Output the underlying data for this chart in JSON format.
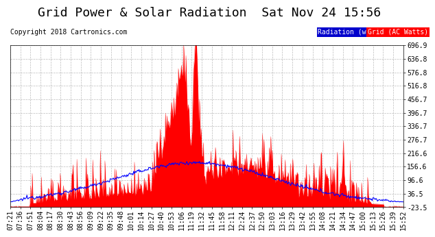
{
  "title": "Grid Power & Solar Radiation  Sat Nov 24 15:56",
  "copyright": "Copyright 2018 Cartronics.com",
  "legend_radiation": "Radiation (w/m2)",
  "legend_grid": "Grid (AC Watts)",
  "yticks": [
    696.9,
    636.8,
    576.8,
    516.8,
    456.7,
    396.7,
    336.7,
    276.7,
    216.6,
    156.6,
    96.6,
    36.5,
    -23.5
  ],
  "ymin": -23.5,
  "ymax": 696.9,
  "background_color": "#ffffff",
  "plot_background": "#ffffff",
  "grid_color": "#aaaaaa",
  "radiation_color": "#0000ff",
  "grid_power_color": "#ff0000",
  "fill_color": "#ff0000",
  "xtick_labels": [
    "07:21",
    "07:36",
    "07:51",
    "08:04",
    "08:17",
    "08:30",
    "08:43",
    "08:56",
    "09:09",
    "09:22",
    "09:35",
    "09:48",
    "10:01",
    "10:14",
    "10:27",
    "10:40",
    "10:53",
    "11:06",
    "11:19",
    "11:32",
    "11:45",
    "11:58",
    "12:11",
    "12:24",
    "12:37",
    "12:50",
    "13:03",
    "13:16",
    "13:29",
    "13:42",
    "13:55",
    "14:08",
    "14:21",
    "14:34",
    "14:47",
    "15:00",
    "15:13",
    "15:26",
    "15:39",
    "15:52"
  ],
  "title_fontsize": 13,
  "label_fontsize": 7,
  "copyright_fontsize": 7,
  "yaxis_side": "right"
}
